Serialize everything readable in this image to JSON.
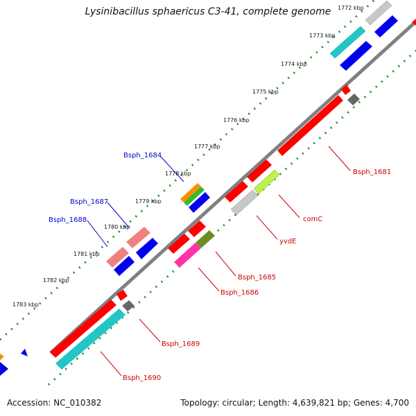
{
  "title": "Lysinibacillus sphaericus C3-41, complete genome",
  "footer": {
    "accession": "Accession: NC_010382",
    "topology": "Topology: circular; Length: 4,639,821 bp; Genes: 4,700"
  },
  "ticks": [
    "1772 kbp",
    "1773 kbp",
    "1774 kbp",
    "1775 kbp",
    "1776 kbp",
    "1777 kbp",
    "1778 kbp",
    "1779 kbp",
    "1780 kbp",
    "1781 kbp",
    "1782 kbp",
    "1783 kbp"
  ],
  "genes": [
    {
      "label": "Bsph_1681",
      "color": "#cc0000"
    },
    {
      "label": "comC",
      "color": "#cc0000"
    },
    {
      "label": "yvdE",
      "color": "#cc0000"
    },
    {
      "label": "Bsph_1685",
      "color": "#cc0000"
    },
    {
      "label": "Bsph_1686",
      "color": "#cc0000"
    },
    {
      "label": "Bsph_1689",
      "color": "#cc0000"
    },
    {
      "label": "Bsph_1690",
      "color": "#cc0000"
    },
    {
      "label": "Bsph_1684",
      "color": "#0000cc"
    },
    {
      "label": "Bsph_1687",
      "color": "#0000cc"
    },
    {
      "label": "Bsph_1688",
      "color": "#0000cc"
    }
  ],
  "colors": {
    "backbone": "#808080",
    "tick_track": "#228b22",
    "red": "#ff0000",
    "blue": "#0000ee",
    "cyan": "#22c6c6",
    "grey_light": "#c8c8c8",
    "grey_dark": "#666666",
    "pink": "#f08080",
    "magenta": "#ff33aa",
    "olive": "#6b8e23",
    "lime": "#c0ef50",
    "orange": "#ff8c00",
    "green": "#33bb33"
  }
}
